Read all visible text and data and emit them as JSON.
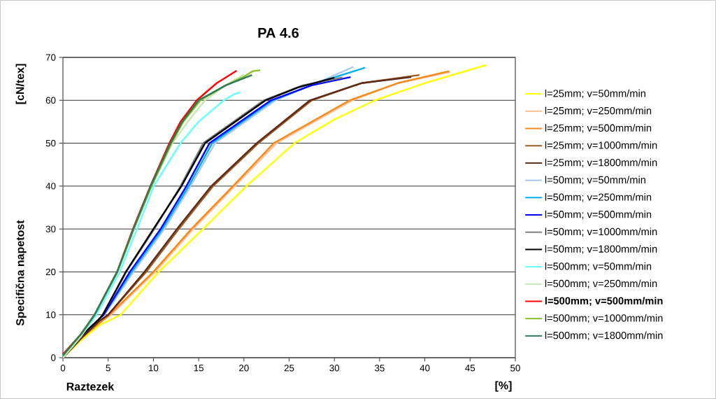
{
  "chart_data": {
    "type": "line",
    "title": "PA 4.6",
    "xlabel": "Raztezek",
    "ylabel": "Specifična napetost",
    "annotations": [
      "[%]",
      "[cN/tex]"
    ],
    "xlim": [
      0,
      50
    ],
    "ylim": [
      0,
      70
    ],
    "xticks": [
      0,
      5,
      10,
      15,
      20,
      25,
      30,
      35,
      40,
      45,
      50
    ],
    "yticks": [
      0,
      10,
      20,
      30,
      40,
      50,
      60,
      70
    ],
    "grid": "y",
    "legend": "right",
    "marker": "none",
    "line_style": "solid",
    "series": [
      {
        "name": "l=25mm; v=50mm/min",
        "color": "#ffff00",
        "x": [
          0,
          2,
          4,
          6.4,
          10.6,
          15.5,
          20.3,
          25.6,
          30,
          34.5,
          40,
          46.8
        ],
        "values": [
          0,
          4,
          7.5,
          10,
          20,
          30,
          40,
          50,
          55.5,
          60,
          64,
          68.2
        ]
      },
      {
        "name": "l=25mm; v=250mm/min",
        "color": "#ffbf8f",
        "x": [
          0,
          2,
          4,
          5.3,
          10.2,
          14.4,
          19.0,
          23.6,
          32,
          37,
          42.8
        ],
        "values": [
          0,
          4.5,
          8,
          10,
          20,
          30,
          40,
          50,
          60,
          64,
          66.6
        ]
      },
      {
        "name": "l=25mm; v=500mm/min",
        "color": "#f28a1e",
        "x": [
          0,
          2,
          4,
          5.15,
          10,
          14.2,
          18.8,
          23.3,
          31.7,
          37,
          42.7
        ],
        "values": [
          0,
          4.5,
          8,
          10,
          20,
          30,
          40,
          50,
          60,
          64,
          66.8
        ]
      },
      {
        "name": "l=25mm; v=1000mm/min",
        "color": "#9c5a1e",
        "x": [
          0,
          2,
          4,
          5,
          9.2,
          12.8,
          16.6,
          21.6,
          27.5,
          33,
          39.4
        ],
        "values": [
          0,
          4.5,
          8.5,
          10,
          20,
          30,
          40,
          50,
          60,
          64,
          65.9
        ]
      },
      {
        "name": "l=25mm; v=1800mm/min",
        "color": "#5c2a1a",
        "x": [
          0,
          2,
          4,
          5,
          9.0,
          12.6,
          16.4,
          21.4,
          27.3,
          33,
          38.5
        ],
        "values": [
          0,
          4.5,
          8.5,
          10,
          20,
          30,
          40,
          50,
          60,
          64,
          65.4
        ]
      },
      {
        "name": "l=50mm; v=50mm/min",
        "color": "#a6c8f0",
        "x": [
          0,
          2,
          4,
          4.6,
          7.8,
          11.2,
          14.1,
          16.8,
          23.5,
          28,
          32.1
        ],
        "values": [
          0,
          5,
          9,
          10,
          20,
          30,
          40,
          50,
          60,
          64,
          67.8
        ]
      },
      {
        "name": "l=50mm; v=250mm/min",
        "color": "#00b0f0",
        "x": [
          0,
          2,
          4,
          4.5,
          7.6,
          11.0,
          13.9,
          16.5,
          23.2,
          28,
          33.4
        ],
        "values": [
          0,
          5,
          9,
          10,
          20,
          30,
          40,
          50,
          60,
          64,
          67.6
        ]
      },
      {
        "name": "l=50mm; v=500mm/min",
        "color": "#0000ff",
        "x": [
          0,
          2,
          4,
          4.5,
          7.4,
          10.8,
          13.65,
          16.2,
          23.0,
          27.5,
          31.8
        ],
        "values": [
          0,
          5,
          9,
          10,
          20,
          30,
          40,
          50,
          60,
          63.5,
          65.4
        ]
      },
      {
        "name": "l=50mm; v=1000mm/min",
        "color": "#808080",
        "x": [
          0,
          2,
          4,
          4.4,
          7.0,
          10.1,
          13.0,
          15.5,
          22.2,
          26.5,
          30.9
        ],
        "values": [
          0,
          5,
          9,
          10,
          20,
          30,
          40,
          50,
          60,
          63.5,
          65.3
        ]
      },
      {
        "name": "l=50mm; v=1800mm/min",
        "color": "#000000",
        "x": [
          0,
          2,
          4,
          4.4,
          6.95,
          10.0,
          13.1,
          15.7,
          22.4,
          26,
          30.0
        ],
        "values": [
          0,
          5,
          9,
          10,
          20,
          30,
          40,
          50,
          60,
          63,
          65.3
        ]
      },
      {
        "name": "l=500mm; v=50mm/min",
        "color": "#66ffff",
        "x": [
          0,
          2,
          3.7,
          6.3,
          8.2,
          10.05,
          13.0,
          15,
          17.8,
          19,
          19.6
        ],
        "values": [
          0,
          5,
          10,
          20,
          30,
          40,
          50,
          55,
          60,
          61.5,
          61.8
        ]
      },
      {
        "name": "l=500mm; v=250mm/min",
        "color": "#c8e6b4",
        "x": [
          0,
          2,
          3.5,
          6.1,
          7.9,
          9.8,
          12.1,
          13.8,
          15.7,
          18,
          20
        ],
        "values": [
          0,
          5,
          10,
          20,
          30,
          40,
          50,
          55,
          60,
          63.5,
          66
        ]
      },
      {
        "name": "**l=500mm; v=500mm/min**",
        "color": "#ff0000",
        "x": [
          0,
          2,
          3.48,
          5.98,
          7.73,
          9.66,
          11.77,
          13,
          14.8,
          17,
          19.2
        ],
        "values": [
          0.8,
          5.5,
          10,
          20,
          30,
          40,
          50,
          55,
          60,
          64,
          66.9
        ]
      },
      {
        "name": "l=500mm; v=1000mm/min",
        "color": "#8cbf26",
        "x": [
          0,
          2,
          3.5,
          6.0,
          7.8,
          9.8,
          12.0,
          13.3,
          15.2,
          18,
          20,
          21,
          21.8
        ],
        "values": [
          0.5,
          5.5,
          10,
          20,
          30,
          40,
          50,
          55,
          60,
          63.5,
          65.5,
          66.8,
          67
        ]
      },
      {
        "name": "l=500mm; v=1800mm/min",
        "color": "#2e7a5a",
        "x": [
          0,
          2,
          3.5,
          6.0,
          7.8,
          9.7,
          11.9,
          13.2,
          15.0,
          18,
          20.9
        ],
        "values": [
          0.5,
          5.5,
          10,
          20,
          30,
          40,
          50,
          55,
          60,
          63.5,
          65.9
        ]
      }
    ]
  }
}
